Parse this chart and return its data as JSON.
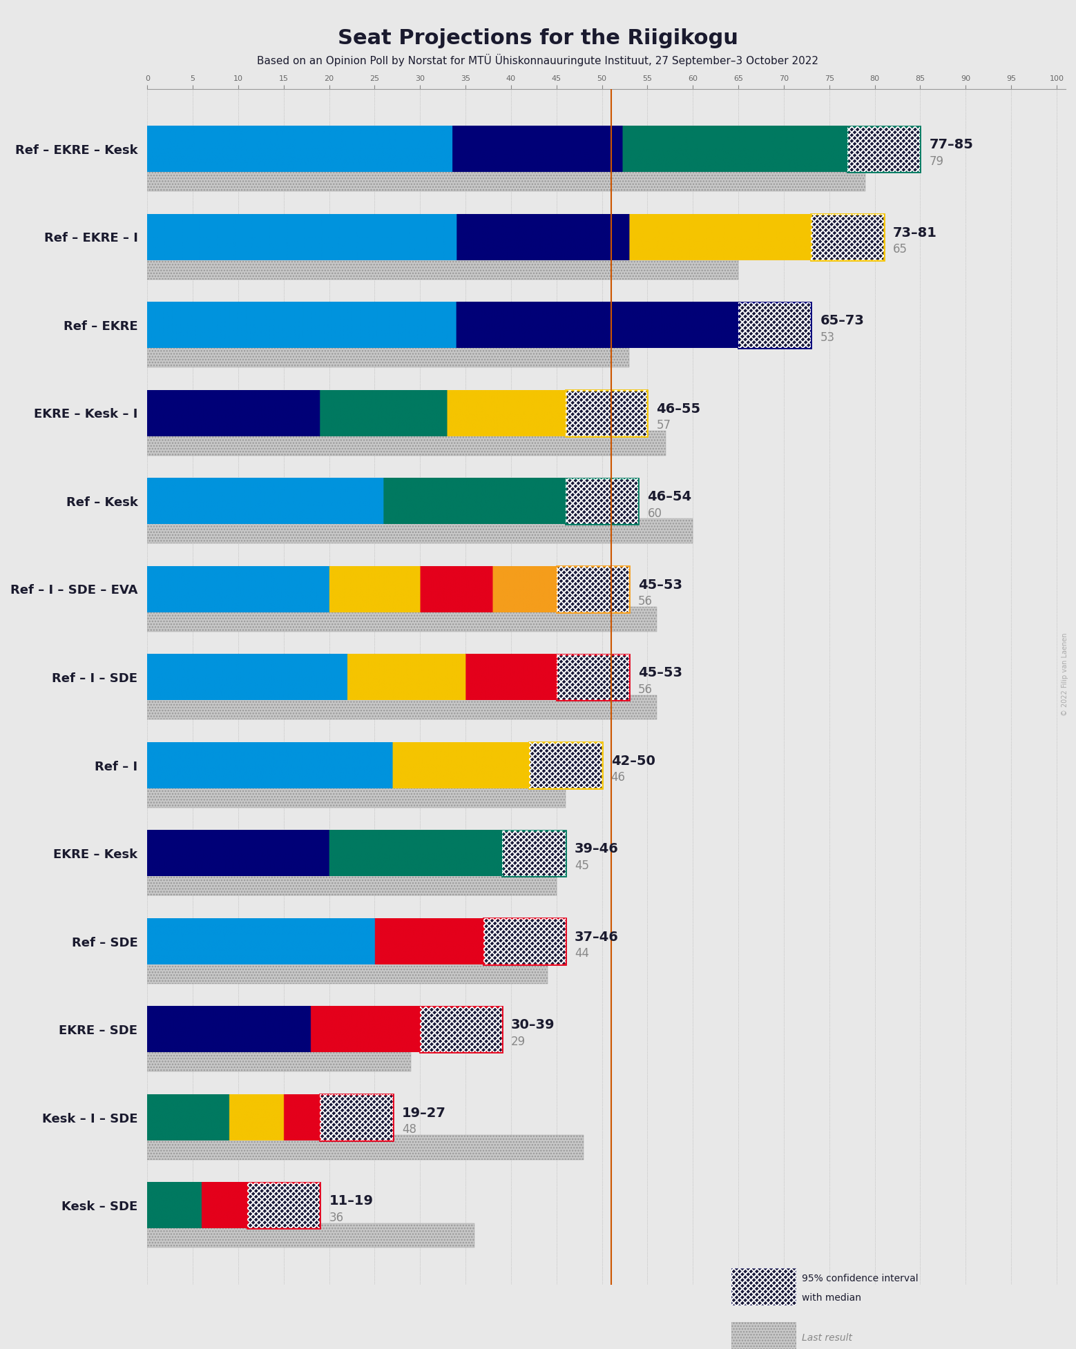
{
  "title": "Seat Projections for the Riigikogu",
  "subtitle": "Based on an Opinion Poll by Norstat for MTÜ Ühiskonnauuringute Instituut, 27 September–3 October 2022",
  "copyright": "© 2022 Filip van Laenen",
  "majority_line": 51,
  "x_max": 101,
  "coalitions": [
    {
      "name": "Ref – EKRE – Kesk",
      "underline": false,
      "ci_low": 77,
      "ci_high": 85,
      "median": 79,
      "last_result": 79,
      "segments": [
        {
          "party": "Ref",
          "color": "#0093dd",
          "seats": 34
        },
        {
          "party": "EKRE",
          "color": "#000077",
          "seats": 19
        },
        {
          "party": "Kesk",
          "color": "#007960",
          "seats": 25
        }
      ]
    },
    {
      "name": "Ref – EKRE – I",
      "underline": false,
      "ci_low": 73,
      "ci_high": 81,
      "median": 65,
      "last_result": 65,
      "segments": [
        {
          "party": "Ref",
          "color": "#0093dd",
          "seats": 34
        },
        {
          "party": "EKRE",
          "color": "#000077",
          "seats": 19
        },
        {
          "party": "I",
          "color": "#f5c400",
          "seats": 20
        }
      ]
    },
    {
      "name": "Ref – EKRE",
      "underline": false,
      "ci_low": 65,
      "ci_high": 73,
      "median": 53,
      "last_result": 53,
      "segments": [
        {
          "party": "Ref",
          "color": "#0093dd",
          "seats": 34
        },
        {
          "party": "EKRE",
          "color": "#000077",
          "seats": 31
        }
      ]
    },
    {
      "name": "EKRE – Kesk – I",
      "underline": true,
      "ci_low": 46,
      "ci_high": 55,
      "median": 57,
      "last_result": 57,
      "segments": [
        {
          "party": "EKRE",
          "color": "#000077",
          "seats": 19
        },
        {
          "party": "Kesk",
          "color": "#007960",
          "seats": 14
        },
        {
          "party": "I",
          "color": "#f5c400",
          "seats": 13
        }
      ]
    },
    {
      "name": "Ref – Kesk",
      "underline": false,
      "ci_low": 46,
      "ci_high": 54,
      "median": 60,
      "last_result": 60,
      "segments": [
        {
          "party": "Ref",
          "color": "#0093dd",
          "seats": 26
        },
        {
          "party": "Kesk",
          "color": "#007960",
          "seats": 20
        }
      ]
    },
    {
      "name": "Ref – I – SDE – EVA",
      "underline": false,
      "ci_low": 45,
      "ci_high": 53,
      "median": 56,
      "last_result": 56,
      "segments": [
        {
          "party": "Ref",
          "color": "#0093dd",
          "seats": 20
        },
        {
          "party": "I",
          "color": "#f5c400",
          "seats": 10
        },
        {
          "party": "SDE",
          "color": "#e4001b",
          "seats": 8
        },
        {
          "party": "EVA",
          "color": "#f59d1b",
          "seats": 7
        }
      ]
    },
    {
      "name": "Ref – I – SDE",
      "underline": false,
      "ci_low": 45,
      "ci_high": 53,
      "median": 56,
      "last_result": 56,
      "segments": [
        {
          "party": "Ref",
          "color": "#0093dd",
          "seats": 22
        },
        {
          "party": "I",
          "color": "#f5c400",
          "seats": 13
        },
        {
          "party": "SDE",
          "color": "#e4001b",
          "seats": 10
        }
      ]
    },
    {
      "name": "Ref – I",
      "underline": false,
      "ci_low": 42,
      "ci_high": 50,
      "median": 46,
      "last_result": 46,
      "segments": [
        {
          "party": "Ref",
          "color": "#0093dd",
          "seats": 27
        },
        {
          "party": "I",
          "color": "#f5c400",
          "seats": 15
        }
      ]
    },
    {
      "name": "EKRE – Kesk",
      "underline": false,
      "ci_low": 39,
      "ci_high": 46,
      "median": 45,
      "last_result": 45,
      "segments": [
        {
          "party": "EKRE",
          "color": "#000077",
          "seats": 20
        },
        {
          "party": "Kesk",
          "color": "#007960",
          "seats": 19
        }
      ]
    },
    {
      "name": "Ref – SDE",
      "underline": false,
      "ci_low": 37,
      "ci_high": 46,
      "median": 44,
      "last_result": 44,
      "segments": [
        {
          "party": "Ref",
          "color": "#0093dd",
          "seats": 25
        },
        {
          "party": "SDE",
          "color": "#e4001b",
          "seats": 12
        }
      ]
    },
    {
      "name": "EKRE – SDE",
      "underline": false,
      "ci_low": 30,
      "ci_high": 39,
      "median": 29,
      "last_result": 29,
      "segments": [
        {
          "party": "EKRE",
          "color": "#000077",
          "seats": 18
        },
        {
          "party": "SDE",
          "color": "#e4001b",
          "seats": 12
        }
      ]
    },
    {
      "name": "Kesk – I – SDE",
      "underline": false,
      "ci_low": 19,
      "ci_high": 27,
      "median": 48,
      "last_result": 48,
      "segments": [
        {
          "party": "Kesk",
          "color": "#007960",
          "seats": 9
        },
        {
          "party": "I",
          "color": "#f5c400",
          "seats": 6
        },
        {
          "party": "SDE",
          "color": "#e4001b",
          "seats": 4
        }
      ]
    },
    {
      "name": "Kesk – SDE",
      "underline": false,
      "ci_low": 11,
      "ci_high": 19,
      "median": 36,
      "last_result": 36,
      "segments": [
        {
          "party": "Kesk",
          "color": "#007960",
          "seats": 6
        },
        {
          "party": "SDE",
          "color": "#e4001b",
          "seats": 5
        }
      ]
    }
  ],
  "bg_color": "#e8e8e8",
  "majority_color": "#cc5500",
  "ci_fill": "#1a1a3a",
  "label_color": "#1a1a2e",
  "gray_color": "#888888",
  "last_result_color": "#bbbbbb"
}
